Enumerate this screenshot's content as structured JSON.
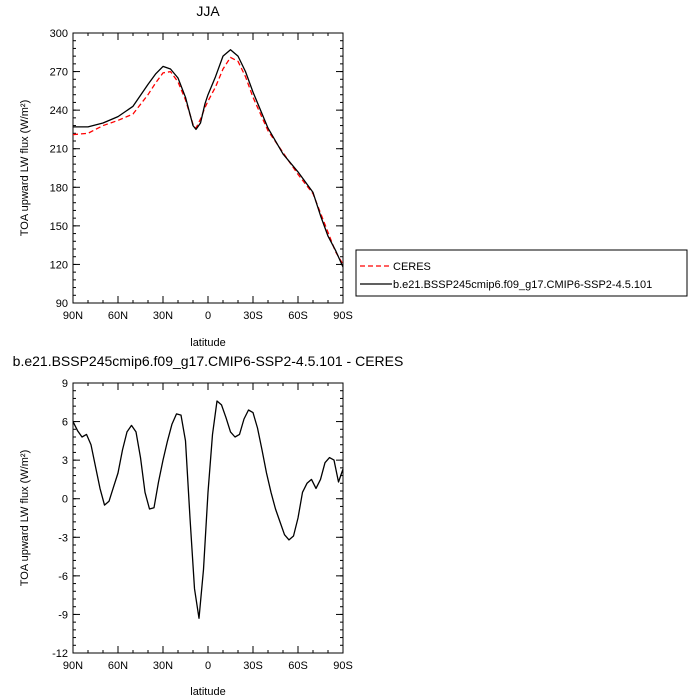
{
  "chart_data": [
    {
      "type": "line",
      "title": "JJA",
      "xlabel": "latitude",
      "ylabel": "TOA upward LW flux (W/m²)",
      "xlim": [
        90,
        -90
      ],
      "ylim": [
        90,
        300
      ],
      "xticks": [
        90,
        60,
        30,
        0,
        -30,
        -60,
        -90
      ],
      "xtick_labels": [
        "90N",
        "60N",
        "30N",
        "0",
        "30S",
        "60S",
        "90S"
      ],
      "yticks": [
        90,
        120,
        150,
        180,
        210,
        240,
        270,
        300
      ],
      "ytick_labels": [
        "90",
        "120",
        "150",
        "180",
        "210",
        "240",
        "270",
        "300"
      ],
      "grid": false,
      "legend": "right",
      "series": [
        {
          "name": "CERES",
          "color": "#ff0000",
          "dash": "dashed",
          "x": [
            90,
            80,
            70,
            60,
            50,
            40,
            35,
            30,
            25,
            20,
            15,
            10,
            8,
            5,
            2,
            0,
            -5,
            -10,
            -15,
            -20,
            -25,
            -30,
            -40,
            -50,
            -60,
            -70,
            -75,
            -80,
            -85,
            -90
          ],
          "y": [
            221,
            222,
            228,
            232,
            237,
            252,
            261,
            269,
            270,
            262,
            248,
            229,
            226,
            233,
            242,
            247,
            258,
            272,
            281,
            278,
            266,
            250,
            224,
            207,
            190,
            175,
            160,
            145,
            130,
            120
          ]
        },
        {
          "name": "b.e21.BSSP245cmip6.f09_g17.CMIP6-SSP2-4.5.101",
          "color": "#000000",
          "dash": "solid",
          "x": [
            90,
            80,
            70,
            60,
            50,
            40,
            35,
            30,
            25,
            20,
            15,
            10,
            8,
            5,
            2,
            0,
            -5,
            -10,
            -15,
            -20,
            -25,
            -30,
            -40,
            -50,
            -60,
            -70,
            -75,
            -80,
            -85,
            -90
          ],
          "y": [
            227,
            227,
            230,
            235,
            243,
            260,
            268,
            274,
            272,
            265,
            250,
            228,
            225,
            230,
            245,
            252,
            266,
            282,
            287,
            282,
            270,
            254,
            226,
            206,
            192,
            176,
            158,
            142,
            131,
            118
          ]
        }
      ]
    },
    {
      "type": "line",
      "title": "b.e21.BSSP245cmip6.f09_g17.CMIP6-SSP2-4.5.101 - CERES",
      "xlabel": "latitude",
      "ylabel": "TOA upward LW flux (W/m²)",
      "xlim": [
        90,
        -90
      ],
      "ylim": [
        -12,
        9
      ],
      "xticks": [
        90,
        60,
        30,
        0,
        -30,
        -60,
        -90
      ],
      "xtick_labels": [
        "90N",
        "60N",
        "30N",
        "0",
        "30S",
        "60S",
        "90S"
      ],
      "yticks": [
        -12,
        -9,
        -6,
        -3,
        0,
        3,
        6,
        9
      ],
      "ytick_labels": [
        "-12",
        "-9",
        "-6",
        "-3",
        "0",
        "3",
        "6",
        "9"
      ],
      "grid": false,
      "series": [
        {
          "color": "#000000",
          "dash": "solid",
          "x": [
            90,
            87,
            84,
            81,
            78,
            75,
            72,
            69,
            66,
            63,
            60,
            57,
            54,
            51,
            48,
            45,
            42,
            39,
            36,
            33,
            30,
            27,
            24,
            21,
            18,
            15,
            12,
            9,
            6,
            3,
            0,
            -3,
            -6,
            -9,
            -12,
            -15,
            -18,
            -21,
            -24,
            -27,
            -30,
            -33,
            -36,
            -39,
            -42,
            -45,
            -48,
            -51,
            -54,
            -57,
            -60,
            -63,
            -66,
            -69,
            -72,
            -75,
            -78,
            -81,
            -84,
            -87,
            -90
          ],
          "y": [
            6.0,
            5.3,
            4.8,
            5.0,
            4.2,
            2.5,
            0.8,
            -0.5,
            -0.2,
            0.9,
            2.0,
            3.8,
            5.2,
            5.7,
            5.2,
            3.2,
            0.5,
            -0.8,
            -0.7,
            1.3,
            3.0,
            4.5,
            5.8,
            6.6,
            6.5,
            4.5,
            -1.5,
            -7.0,
            -9.3,
            -5.5,
            0.5,
            5.0,
            7.6,
            7.3,
            6.3,
            5.2,
            4.8,
            5.0,
            6.2,
            6.9,
            6.7,
            5.5,
            3.8,
            2.0,
            0.5,
            -0.8,
            -1.8,
            -2.8,
            -3.2,
            -2.9,
            -1.5,
            0.5,
            1.2,
            1.5,
            0.8,
            1.5,
            2.8,
            3.2,
            3.0,
            1.3,
            2.3
          ]
        }
      ]
    }
  ],
  "legend_entries": [
    {
      "label": "CERES",
      "color": "#ff0000",
      "dash": "dashed"
    },
    {
      "label": "b.e21.BSSP245cmip6.f09_g17.CMIP6-SSP2-4.5.101",
      "color": "#000000",
      "dash": "solid"
    }
  ]
}
